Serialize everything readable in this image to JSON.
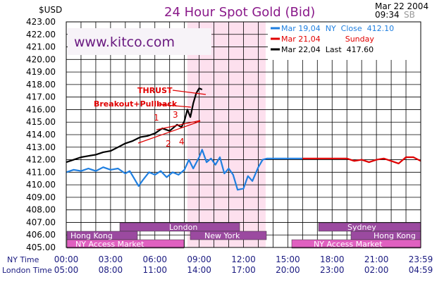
{
  "header": {
    "unit": "$USD",
    "title": "24 Hour Spot Gold (Bid)",
    "date": "Mar 22 2004",
    "time": "09:34",
    "tz": "SB"
  },
  "watermark": "www.kitco.com",
  "legend": [
    {
      "text": "Mar 19,04  NY  Close  412.10",
      "color": "#1f7fe0"
    },
    {
      "text": "Mar 21,04          Sunday",
      "color": "#e00000"
    },
    {
      "text": "Mar 22,04  Last  417.60",
      "color": "#000000"
    }
  ],
  "annotations": {
    "thrust": "THRUST",
    "breakout": "Breakout+Pullback",
    "n1": "1",
    "n2": "2",
    "n3": "3",
    "n4": "4"
  },
  "sessions": {
    "london": "London",
    "hong_kong": "Hong  Kong",
    "new_york": "New  York",
    "sydney": "Sydney",
    "hong_kong2": "Hong  Kong",
    "ny_access1": "NY  Access  Market",
    "ny_access2": "NY  Access  Market"
  },
  "x_axis": {
    "row1_label": "NY Time",
    "row2_label": "London Time",
    "ny_ticks": [
      "00:00",
      "03:00",
      "06:00",
      "09:00",
      "12:00",
      "15:00",
      "18:00",
      "21:00",
      "23:59"
    ],
    "london_ticks": [
      "05:00",
      "08:00",
      "11:00",
      "14:00",
      "17:00",
      "20:00",
      "23:00",
      "02:00",
      "04:59"
    ]
  },
  "chart_data": {
    "type": "line",
    "title": "24 Hour Spot Gold (Bid)",
    "ylabel": "$USD",
    "ylim": [
      405,
      423
    ],
    "xlim": [
      0,
      24
    ],
    "y_ticks": [
      "423.00",
      "422.00",
      "421.00",
      "420.00",
      "419.00",
      "418.00",
      "417.00",
      "416.00",
      "415.00",
      "414.00",
      "413.00",
      "412.00",
      "411.00",
      "410.00",
      "409.00",
      "408.00",
      "407.00",
      "406.00",
      "405.00"
    ],
    "highlight": {
      "from": 8.2,
      "to": 13.5,
      "color": "#fde0ee"
    },
    "series": [
      {
        "name": "Mar 19,04  NY  Close  412.10",
        "color": "#1f7fe0",
        "points": [
          [
            0,
            411.0
          ],
          [
            0.5,
            411.2
          ],
          [
            1,
            411.1
          ],
          [
            1.5,
            411.3
          ],
          [
            2,
            411.1
          ],
          [
            2.5,
            411.4
          ],
          [
            3,
            411.2
          ],
          [
            3.5,
            411.3
          ],
          [
            4,
            410.9
          ],
          [
            4.3,
            411.1
          ],
          [
            4.6,
            410.5
          ],
          [
            4.9,
            409.9
          ],
          [
            5.2,
            410.4
          ],
          [
            5.6,
            411.0
          ],
          [
            6,
            410.8
          ],
          [
            6.4,
            411.1
          ],
          [
            6.8,
            410.6
          ],
          [
            7.2,
            411.0
          ],
          [
            7.6,
            410.8
          ],
          [
            8,
            411.2
          ],
          [
            8.3,
            412.0
          ],
          [
            8.6,
            411.3
          ],
          [
            9,
            412.2
          ],
          [
            9.2,
            412.8
          ],
          [
            9.5,
            411.8
          ],
          [
            9.8,
            412.1
          ],
          [
            10.1,
            411.6
          ],
          [
            10.4,
            412.2
          ],
          [
            10.7,
            410.9
          ],
          [
            11,
            411.3
          ],
          [
            11.3,
            410.8
          ],
          [
            11.6,
            409.6
          ],
          [
            12,
            409.7
          ],
          [
            12.3,
            410.7
          ],
          [
            12.6,
            410.3
          ],
          [
            13,
            411.4
          ],
          [
            13.3,
            412.0
          ],
          [
            13.6,
            412.1
          ],
          [
            14.5,
            412.1
          ],
          [
            16,
            412.1
          ]
        ]
      },
      {
        "name": "Mar 21,04          Sunday",
        "color": "#e00000",
        "points": [
          [
            16,
            412.1
          ],
          [
            17,
            412.1
          ],
          [
            19,
            412.1
          ],
          [
            19.5,
            411.9
          ],
          [
            20,
            412.0
          ],
          [
            20.5,
            411.8
          ],
          [
            21,
            412.0
          ],
          [
            21.5,
            412.1
          ],
          [
            22,
            411.9
          ],
          [
            22.5,
            411.7
          ],
          [
            23,
            412.2
          ],
          [
            23.5,
            412.2
          ],
          [
            24,
            411.9
          ]
        ]
      },
      {
        "name": "Mar 22,04  Last  417.60",
        "color": "#000000",
        "points": [
          [
            0,
            411.8
          ],
          [
            0.5,
            412.0
          ],
          [
            1,
            412.2
          ],
          [
            1.5,
            412.3
          ],
          [
            2,
            412.4
          ],
          [
            2.5,
            412.6
          ],
          [
            3,
            412.7
          ],
          [
            3.5,
            413.0
          ],
          [
            4,
            413.3
          ],
          [
            4.5,
            413.5
          ],
          [
            5,
            413.8
          ],
          [
            5.5,
            413.9
          ],
          [
            6,
            414.1
          ],
          [
            6.5,
            414.5
          ],
          [
            7,
            414.3
          ],
          [
            7.5,
            414.8
          ],
          [
            7.8,
            414.6
          ],
          [
            8,
            415.1
          ],
          [
            8.2,
            416.0
          ],
          [
            8.4,
            415.4
          ],
          [
            8.6,
            416.5
          ],
          [
            8.8,
            417.3
          ],
          [
            9,
            417.7
          ],
          [
            9.2,
            417.6
          ]
        ]
      }
    ]
  }
}
